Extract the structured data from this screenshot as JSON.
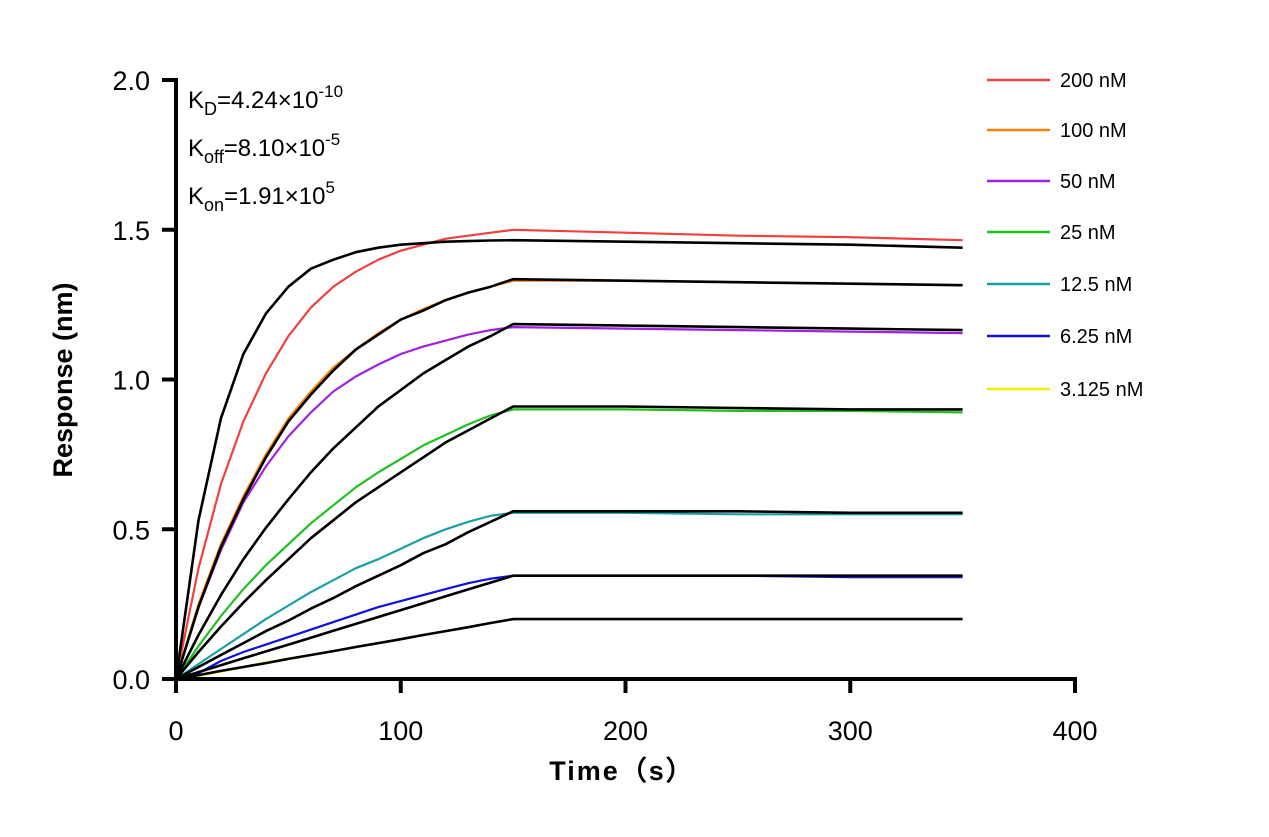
{
  "chart_data": {
    "type": "line",
    "xlabel": "Time（s）",
    "ylabel": "Response (nm)",
    "xlim": [
      0,
      400
    ],
    "ylim": [
      0,
      2.0
    ],
    "xticks": [
      "0",
      "100",
      "200",
      "300",
      "400"
    ],
    "yticks": [
      "0.0",
      "0.5",
      "1.0",
      "1.5",
      "2.0"
    ],
    "grid": false,
    "legend_position": "top-right",
    "annotations": [
      {
        "base": "K",
        "sub": "D",
        "value": "=4.24×10",
        "exp": "-10"
      },
      {
        "base": "K",
        "sub": "off",
        "value": "=8.10×10",
        "exp": "-5"
      },
      {
        "base": "K",
        "sub": "on",
        "value": "=1.91×10",
        "exp": "5"
      }
    ],
    "x": [
      0,
      10,
      20,
      30,
      40,
      50,
      60,
      70,
      80,
      90,
      100,
      110,
      120,
      130,
      140,
      150,
      200,
      250,
      300,
      350
    ],
    "series": [
      {
        "name": "200 nM",
        "color": "#f04040",
        "values": [
          0,
          0.37,
          0.65,
          0.86,
          1.02,
          1.145,
          1.24,
          1.31,
          1.36,
          1.4,
          1.43,
          1.45,
          1.47,
          1.48,
          1.49,
          1.5,
          1.49,
          1.48,
          1.475,
          1.465
        ],
        "fit": [
          0,
          0.53,
          0.87,
          1.085,
          1.22,
          1.31,
          1.37,
          1.4,
          1.425,
          1.44,
          1.45,
          1.455,
          1.46,
          1.462,
          1.464,
          1.465,
          1.46,
          1.455,
          1.45,
          1.44
        ]
      },
      {
        "name": "100 nM",
        "color": "#ff8000",
        "values": [
          0,
          0.25,
          0.45,
          0.61,
          0.75,
          0.87,
          0.96,
          1.04,
          1.1,
          1.155,
          1.2,
          1.235,
          1.265,
          1.29,
          1.31,
          1.33,
          1.33,
          1.325,
          1.32,
          1.315
        ],
        "fit": [
          0,
          0.24,
          0.44,
          0.6,
          0.74,
          0.86,
          0.95,
          1.03,
          1.1,
          1.15,
          1.2,
          1.23,
          1.265,
          1.29,
          1.31,
          1.335,
          1.33,
          1.325,
          1.32,
          1.315
        ]
      },
      {
        "name": "50 nM",
        "color": "#a020e0",
        "values": [
          0,
          0.24,
          0.43,
          0.59,
          0.71,
          0.81,
          0.89,
          0.96,
          1.01,
          1.05,
          1.085,
          1.11,
          1.13,
          1.15,
          1.165,
          1.175,
          1.17,
          1.165,
          1.16,
          1.155
        ],
        "fit": [
          0,
          0.147,
          0.28,
          0.4,
          0.505,
          0.6,
          0.69,
          0.77,
          0.84,
          0.91,
          0.965,
          1.02,
          1.065,
          1.11,
          1.145,
          1.185,
          1.18,
          1.175,
          1.17,
          1.165
        ]
      },
      {
        "name": "25 nM",
        "color": "#20c020",
        "values": [
          0,
          0.11,
          0.21,
          0.3,
          0.38,
          0.45,
          0.52,
          0.58,
          0.64,
          0.69,
          0.735,
          0.78,
          0.815,
          0.85,
          0.88,
          0.9,
          0.9,
          0.895,
          0.895,
          0.89
        ],
        "fit": [
          0,
          0.09,
          0.175,
          0.255,
          0.33,
          0.4,
          0.47,
          0.53,
          0.59,
          0.64,
          0.69,
          0.74,
          0.79,
          0.83,
          0.87,
          0.91,
          0.91,
          0.905,
          0.9,
          0.9
        ]
      },
      {
        "name": "12.5 nM",
        "color": "#1a9fa8",
        "values": [
          0,
          0.05,
          0.1,
          0.15,
          0.2,
          0.245,
          0.29,
          0.33,
          0.37,
          0.4,
          0.435,
          0.47,
          0.5,
          0.525,
          0.545,
          0.555,
          0.555,
          0.55,
          0.55,
          0.55
        ],
        "fit": [
          0,
          0.04,
          0.08,
          0.12,
          0.16,
          0.195,
          0.235,
          0.27,
          0.31,
          0.345,
          0.38,
          0.42,
          0.45,
          0.49,
          0.525,
          0.56,
          0.56,
          0.56,
          0.555,
          0.555
        ]
      },
      {
        "name": "6.25 nM",
        "color": "#1010e0",
        "values": [
          0,
          0.02,
          0.06,
          0.09,
          0.115,
          0.14,
          0.165,
          0.19,
          0.215,
          0.24,
          0.26,
          0.28,
          0.3,
          0.32,
          0.335,
          0.345,
          0.345,
          0.345,
          0.34,
          0.34
        ],
        "fit": [
          0,
          0.023,
          0.046,
          0.069,
          0.092,
          0.115,
          0.138,
          0.161,
          0.184,
          0.207,
          0.23,
          0.253,
          0.276,
          0.299,
          0.322,
          0.345,
          0.345,
          0.345,
          0.345,
          0.345
        ]
      },
      {
        "name": "3.125 nM",
        "color": "#f0f000",
        "values": [
          0,
          0.01,
          0.025,
          0.04,
          0.055,
          0.068,
          0.08,
          0.093,
          0.107,
          0.12,
          0.133,
          0.147,
          0.16,
          0.173,
          0.187,
          0.2,
          0.2,
          0.2,
          0.2,
          0.2
        ],
        "fit": [
          0,
          0.013,
          0.027,
          0.04,
          0.053,
          0.067,
          0.08,
          0.093,
          0.107,
          0.12,
          0.133,
          0.147,
          0.16,
          0.173,
          0.187,
          0.2,
          0.2,
          0.2,
          0.2,
          0.2
        ]
      }
    ]
  }
}
